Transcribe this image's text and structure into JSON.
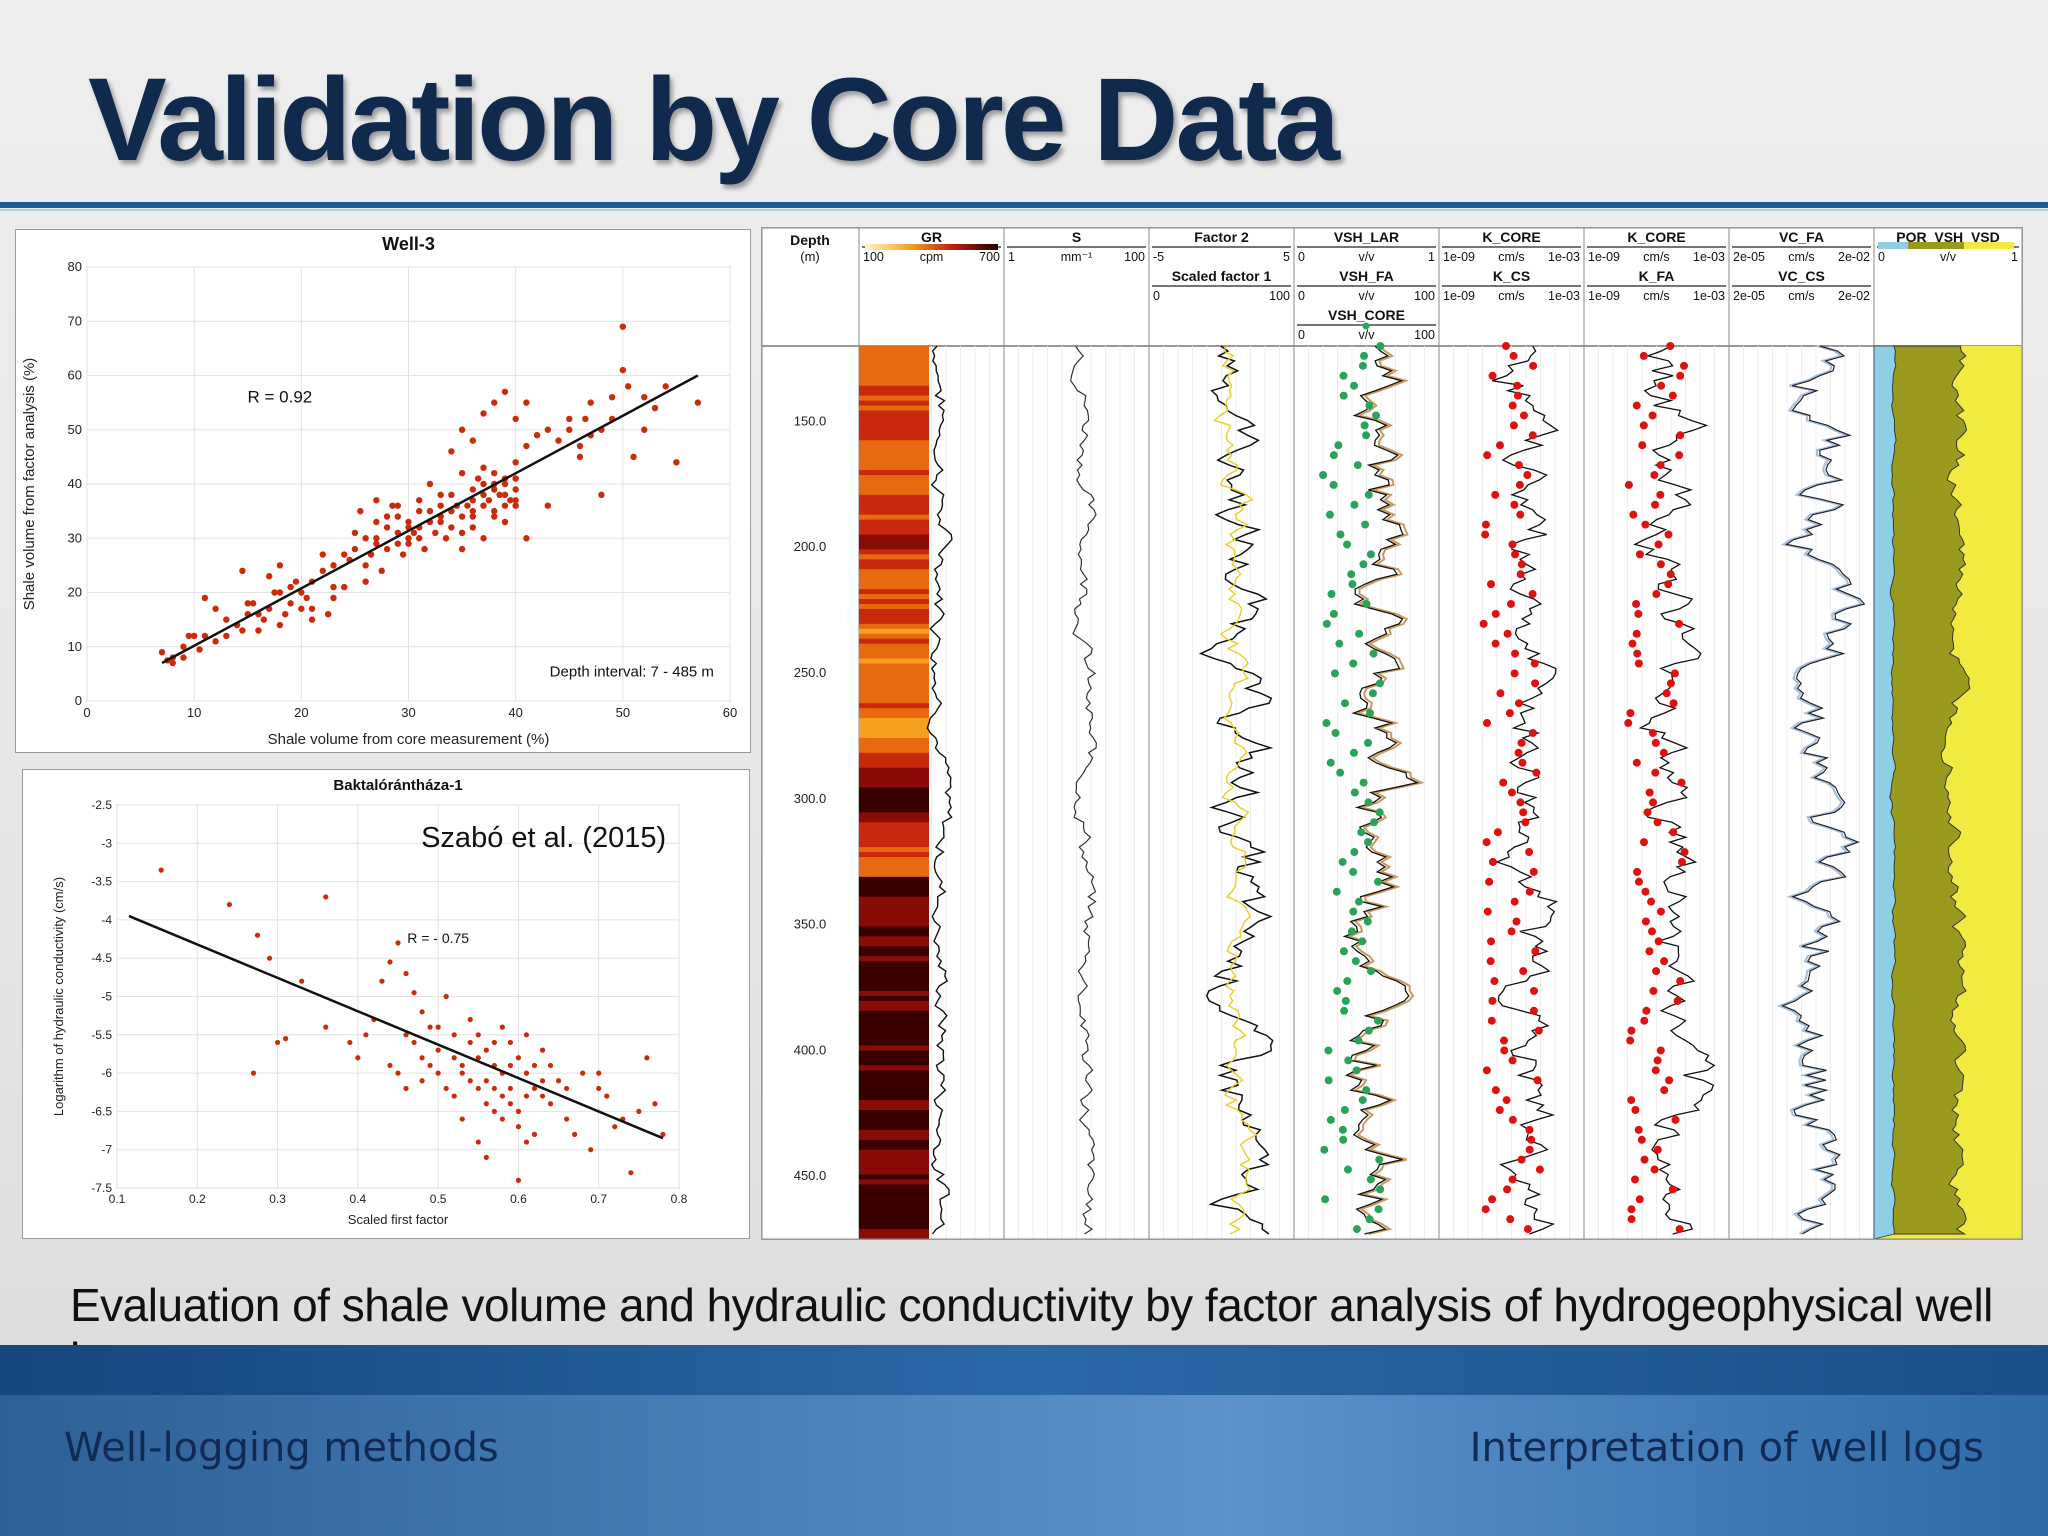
{
  "slide": {
    "title": "Validation by Core Data",
    "caption": "Evaluation of shale volume and hydraulic conductivity by factor analysis of hydrogeophysical well logs",
    "footer_left": "Well-logging methods",
    "footer_right": "Interpretation of well logs"
  },
  "colors": {
    "title": "#0f2a4d",
    "accent_blue": "#1d5aa0",
    "scatter": "#cc2a0a",
    "core_red": "#e01010",
    "core_green": "#2aa35a"
  },
  "chart_data": [
    {
      "type": "scatter",
      "title": "Well-3",
      "xlabel": "Shale volume from core measurement (%)",
      "ylabel": "Shale volume from factor analysis (%)",
      "xlim": [
        0,
        60
      ],
      "ylim": [
        0,
        80
      ],
      "xticks": [
        0,
        10,
        20,
        30,
        40,
        50,
        60
      ],
      "yticks": [
        0,
        10,
        20,
        30,
        40,
        50,
        60,
        70,
        80
      ],
      "grid": true,
      "annotations": [
        "R = 0.92",
        "Depth interval: 7 - 485 m"
      ],
      "fit_line": [
        [
          7,
          7
        ],
        [
          57,
          60
        ]
      ],
      "points": [
        [
          7,
          9
        ],
        [
          7.5,
          7.5
        ],
        [
          8,
          8
        ],
        [
          9,
          10
        ],
        [
          9.5,
          12
        ],
        [
          10,
          12
        ],
        [
          10.5,
          9.5
        ],
        [
          11,
          19
        ],
        [
          12,
          11
        ],
        [
          13,
          12
        ],
        [
          14,
          14
        ],
        [
          14.5,
          13
        ],
        [
          14.5,
          24
        ],
        [
          15,
          16
        ],
        [
          15.5,
          18
        ],
        [
          16,
          16
        ],
        [
          16.5,
          15
        ],
        [
          17,
          17
        ],
        [
          17,
          23
        ],
        [
          17.5,
          20
        ],
        [
          18,
          14
        ],
        [
          18,
          25
        ],
        [
          18.5,
          16
        ],
        [
          19,
          18
        ],
        [
          19.5,
          22
        ],
        [
          20,
          20
        ],
        [
          20,
          17
        ],
        [
          20.5,
          19
        ],
        [
          21,
          22
        ],
        [
          21,
          15
        ],
        [
          22,
          24
        ],
        [
          22.5,
          16
        ],
        [
          23,
          21
        ],
        [
          24,
          27
        ],
        [
          24.5,
          26
        ],
        [
          25,
          28
        ],
        [
          25,
          31
        ],
        [
          25.5,
          35
        ],
        [
          26,
          30
        ],
        [
          26,
          25
        ],
        [
          26.5,
          27
        ],
        [
          27,
          33
        ],
        [
          27,
          29
        ],
        [
          27.5,
          24
        ],
        [
          28,
          28
        ],
        [
          28,
          32
        ],
        [
          28.5,
          36
        ],
        [
          29,
          31
        ],
        [
          29,
          34
        ],
        [
          29.5,
          27
        ],
        [
          30,
          30
        ],
        [
          30,
          29
        ],
        [
          30.5,
          31
        ],
        [
          31,
          35
        ],
        [
          31,
          32
        ],
        [
          31.5,
          28
        ],
        [
          32,
          33
        ],
        [
          32,
          40
        ],
        [
          32.5,
          31
        ],
        [
          33,
          36
        ],
        [
          33,
          34
        ],
        [
          33.5,
          30
        ],
        [
          34,
          35
        ],
        [
          34,
          38
        ],
        [
          34.5,
          36
        ],
        [
          35,
          34
        ],
        [
          35,
          42
        ],
        [
          35.5,
          36
        ],
        [
          36,
          37
        ],
        [
          36,
          39
        ],
        [
          36,
          34
        ],
        [
          36.5,
          41
        ],
        [
          37,
          36
        ],
        [
          37,
          38
        ],
        [
          37,
          43
        ],
        [
          37.5,
          37
        ],
        [
          38,
          40
        ],
        [
          38,
          35
        ],
        [
          38,
          39
        ],
        [
          38.5,
          38
        ],
        [
          39,
          40
        ],
        [
          39,
          41
        ],
        [
          39,
          36
        ],
        [
          39.5,
          37
        ],
        [
          40,
          39
        ],
        [
          40,
          44
        ],
        [
          34,
          46
        ],
        [
          35,
          50
        ],
        [
          36,
          48
        ],
        [
          37,
          53
        ],
        [
          38,
          55
        ],
        [
          39,
          57
        ],
        [
          40,
          52
        ],
        [
          41,
          55
        ],
        [
          42,
          49
        ],
        [
          43,
          36
        ],
        [
          44,
          48
        ],
        [
          45,
          50
        ],
        [
          46,
          45
        ],
        [
          46.5,
          52
        ],
        [
          47,
          49
        ],
        [
          48,
          50
        ],
        [
          48,
          38
        ],
        [
          49,
          56
        ],
        [
          49,
          52
        ],
        [
          50,
          61
        ],
        [
          50,
          69
        ],
        [
          50.5,
          58
        ],
        [
          51,
          45
        ],
        [
          52,
          50
        ],
        [
          52,
          56
        ],
        [
          53,
          54
        ],
        [
          54,
          58
        ],
        [
          55,
          44
        ],
        [
          57,
          55
        ],
        [
          30,
          32
        ],
        [
          31,
          37
        ],
        [
          32,
          35
        ],
        [
          33,
          38
        ],
        [
          29,
          36
        ],
        [
          28,
          34
        ],
        [
          27,
          37
        ],
        [
          26,
          22
        ],
        [
          24,
          21
        ],
        [
          23,
          19
        ],
        [
          22,
          27
        ],
        [
          21,
          17
        ],
        [
          23,
          25
        ],
        [
          27,
          30
        ],
        [
          29,
          29
        ],
        [
          30,
          33
        ],
        [
          31,
          30
        ],
        [
          33,
          33
        ],
        [
          34,
          32
        ],
        [
          35,
          31
        ],
        [
          36,
          35
        ],
        [
          37,
          40
        ],
        [
          38,
          42
        ],
        [
          39,
          33
        ],
        [
          40,
          37
        ],
        [
          41,
          30
        ],
        [
          35,
          28
        ],
        [
          36,
          32
        ],
        [
          37,
          30
        ],
        [
          38,
          34
        ],
        [
          39,
          38
        ],
        [
          40,
          41
        ],
        [
          41,
          47
        ],
        [
          43,
          50
        ],
        [
          45,
          52
        ],
        [
          46,
          47
        ],
        [
          47,
          55
        ],
        [
          40,
          36
        ],
        [
          19,
          21
        ],
        [
          18,
          20
        ],
        [
          16,
          13
        ],
        [
          15,
          18
        ],
        [
          13,
          15
        ],
        [
          12,
          17
        ],
        [
          11,
          12
        ],
        [
          8,
          7
        ],
        [
          9,
          8
        ]
      ]
    },
    {
      "type": "scatter",
      "title": "Baktalórántháza-1",
      "xlabel": "Scaled first factor",
      "ylabel": "Logarithm of hydraulic conductivity (cm/s)",
      "xlim": [
        0.1,
        0.8
      ],
      "ylim": [
        -7.5,
        -2.5
      ],
      "xticks": [
        "0.1",
        "0.2",
        "0.3",
        "0.4",
        "0.5",
        "0.6",
        "0.7",
        "0.8"
      ],
      "yticks": [
        "-2.5",
        "-3",
        "-3.5",
        "-4",
        "-4.5",
        "-5",
        "-5.5",
        "-6",
        "-6.5",
        "-7",
        "-7.5"
      ],
      "grid": true,
      "annotations": [
        "Szabó et al. (2015)",
        "R = - 0.75"
      ],
      "fit_line": [
        [
          0.115,
          -3.95
        ],
        [
          0.78,
          -6.85
        ]
      ],
      "points": [
        [
          0.155,
          -3.35
        ],
        [
          0.24,
          -3.8
        ],
        [
          0.275,
          -4.2
        ],
        [
          0.29,
          -4.5
        ],
        [
          0.36,
          -3.7
        ],
        [
          0.3,
          -5.6
        ],
        [
          0.31,
          -5.55
        ],
        [
          0.27,
          -6.0
        ],
        [
          0.33,
          -4.8
        ],
        [
          0.36,
          -5.4
        ],
        [
          0.4,
          -5.8
        ],
        [
          0.42,
          -5.3
        ],
        [
          0.43,
          -4.8
        ],
        [
          0.44,
          -4.55
        ],
        [
          0.45,
          -4.3
        ],
        [
          0.46,
          -4.7
        ],
        [
          0.47,
          -4.95
        ],
        [
          0.48,
          -5.2
        ],
        [
          0.49,
          -5.4
        ],
        [
          0.5,
          -5.7
        ],
        [
          0.51,
          -5.0
        ],
        [
          0.52,
          -5.5
        ],
        [
          0.53,
          -5.9
        ],
        [
          0.54,
          -5.3
        ],
        [
          0.55,
          -5.8
        ],
        [
          0.56,
          -6.1
        ],
        [
          0.57,
          -5.6
        ],
        [
          0.58,
          -6.3
        ],
        [
          0.59,
          -5.9
        ],
        [
          0.6,
          -6.5
        ],
        [
          0.61,
          -6.0
        ],
        [
          0.62,
          -6.2
        ],
        [
          0.63,
          -5.7
        ],
        [
          0.64,
          -6.4
        ],
        [
          0.65,
          -6.1
        ],
        [
          0.66,
          -6.6
        ],
        [
          0.67,
          -6.8
        ],
        [
          0.68,
          -6.0
        ],
        [
          0.69,
          -7.0
        ],
        [
          0.7,
          -6.2
        ],
        [
          0.72,
          -6.7
        ],
        [
          0.74,
          -7.3
        ],
        [
          0.75,
          -6.5
        ],
        [
          0.76,
          -5.8
        ],
        [
          0.77,
          -6.4
        ],
        [
          0.78,
          -6.8
        ],
        [
          0.5,
          -6.0
        ],
        [
          0.52,
          -6.3
        ],
        [
          0.53,
          -6.6
        ],
        [
          0.54,
          -6.1
        ],
        [
          0.55,
          -6.9
        ],
        [
          0.56,
          -7.1
        ],
        [
          0.57,
          -6.5
        ],
        [
          0.58,
          -5.4
        ],
        [
          0.59,
          -5.6
        ],
        [
          0.6,
          -6.7
        ],
        [
          0.61,
          -6.9
        ],
        [
          0.62,
          -5.9
        ],
        [
          0.63,
          -6.3
        ],
        [
          0.55,
          -5.5
        ],
        [
          0.56,
          -5.7
        ],
        [
          0.57,
          -5.9
        ],
        [
          0.58,
          -6.0
        ],
        [
          0.59,
          -6.2
        ],
        [
          0.6,
          -5.8
        ],
        [
          0.61,
          -5.5
        ],
        [
          0.47,
          -5.6
        ],
        [
          0.48,
          -6.1
        ],
        [
          0.49,
          -5.9
        ],
        [
          0.51,
          -6.2
        ],
        [
          0.52,
          -5.8
        ],
        [
          0.53,
          -6.0
        ],
        [
          0.54,
          -5.6
        ],
        [
          0.6,
          -7.4
        ],
        [
          0.44,
          -5.9
        ],
        [
          0.45,
          -6.0
        ],
        [
          0.46,
          -5.5
        ],
        [
          0.41,
          -5.5
        ],
        [
          0.39,
          -5.6
        ],
        [
          0.56,
          -6.4
        ],
        [
          0.57,
          -6.2
        ],
        [
          0.58,
          -6.6
        ],
        [
          0.62,
          -6.8
        ],
        [
          0.63,
          -6.1
        ],
        [
          0.64,
          -5.9
        ],
        [
          0.66,
          -6.2
        ],
        [
          0.7,
          -6.0
        ],
        [
          0.71,
          -6.3
        ],
        [
          0.73,
          -6.6
        ],
        [
          0.5,
          -5.4
        ],
        [
          0.48,
          -5.8
        ],
        [
          0.46,
          -6.2
        ],
        [
          0.55,
          -6.2
        ],
        [
          0.59,
          -6.4
        ],
        [
          0.61,
          -6.3
        ]
      ]
    },
    {
      "type": "line",
      "title": "",
      "depth_label": "Depth",
      "depth_unit": "(m)",
      "depth_range": [
        120,
        475
      ],
      "depth_ticks": [
        "150.0",
        "200.0",
        "250.0",
        "300.0",
        "350.0",
        "400.0",
        "450.0"
      ],
      "tracks": [
        {
          "headers": [
            {
              "name": "GR",
              "min": "100",
              "unit": "cpm",
              "max": "700"
            }
          ]
        },
        {
          "headers": [
            {
              "name": "S",
              "min": "1",
              "unit": "mm⁻¹",
              "max": "100"
            }
          ]
        },
        {
          "headers": [
            {
              "name": "Factor 2",
              "min": "-5",
              "unit": "",
              "max": "5"
            },
            {
              "name": "Scaled factor 1",
              "min": "0",
              "unit": "",
              "max": "100"
            }
          ]
        },
        {
          "headers": [
            {
              "name": "VSH_LAR",
              "min": "0",
              "unit": "v/v",
              "max": "1"
            },
            {
              "name": "VSH_FA",
              "min": "0",
              "unit": "v/v",
              "max": "100"
            },
            {
              "name": "VSH_CORE",
              "min": "0",
              "unit": "v/v",
              "max": "100"
            }
          ]
        },
        {
          "headers": [
            {
              "name": "K_CORE",
              "min": "1e-09",
              "unit": "cm/s",
              "max": "1e-03"
            },
            {
              "name": "K_CS",
              "min": "1e-09",
              "unit": "cm/s",
              "max": "1e-03"
            }
          ]
        },
        {
          "headers": [
            {
              "name": "K_CORE",
              "min": "1e-09",
              "unit": "cm/s",
              "max": "1e-03"
            },
            {
              "name": "K_FA",
              "min": "1e-09",
              "unit": "cm/s",
              "max": "1e-03"
            }
          ]
        },
        {
          "headers": [
            {
              "name": "VC_FA",
              "min": "2e-05",
              "unit": "cm/s",
              "max": "2e-02"
            },
            {
              "name": "VC_CS",
              "min": "2e-05",
              "unit": "cm/s",
              "max": "2e-02"
            }
          ]
        },
        {
          "headers": [
            {
              "name": "POR_VSH_VSD",
              "min": "0",
              "unit": "v/v",
              "max": "1"
            }
          ]
        }
      ]
    }
  ]
}
